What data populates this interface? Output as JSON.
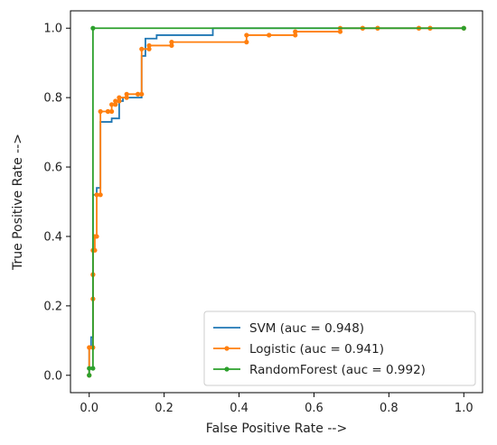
{
  "chart_data": {
    "type": "line",
    "title": "",
    "xlabel": "False Positive Rate -->",
    "ylabel": "True Positive Rate -->",
    "xlim": [
      -0.05,
      1.05
    ],
    "ylim": [
      -0.05,
      1.05
    ],
    "xticks": [
      0.0,
      0.2,
      0.4,
      0.6,
      0.8,
      1.0
    ],
    "yticks": [
      0.0,
      0.2,
      0.4,
      0.6,
      0.8,
      1.0
    ],
    "xtick_labels": [
      "0.0",
      "0.2",
      "0.4",
      "0.6",
      "0.8",
      "1.0"
    ],
    "ytick_labels": [
      "0.0",
      "0.2",
      "0.4",
      "0.6",
      "0.8",
      "1.0"
    ],
    "grid": false,
    "legend_position": "lower-right",
    "series": [
      {
        "name": "SVM (auc = 0.948)",
        "color": "#1f77b4",
        "markers": false,
        "x": [
          0,
          0,
          0.005,
          0.005,
          0.01,
          0.01,
          0.02,
          0.02,
          0.03,
          0.03,
          0.06,
          0.06,
          0.08,
          0.08,
          0.09,
          0.09,
          0.14,
          0.14,
          0.15,
          0.15,
          0.18,
          0.18,
          0.33,
          0.33,
          1.0
        ],
        "y": [
          0,
          0.08,
          0.08,
          0.11,
          0.11,
          0.52,
          0.52,
          0.54,
          0.54,
          0.73,
          0.73,
          0.74,
          0.74,
          0.79,
          0.79,
          0.8,
          0.8,
          0.92,
          0.92,
          0.97,
          0.97,
          0.98,
          0.98,
          1.0,
          1.0
        ]
      },
      {
        "name": "Logistic (auc = 0.941)",
        "color": "#ff7f0e",
        "markers": true,
        "x": [
          0,
          0,
          0.01,
          0.01,
          0.01,
          0.01,
          0.01,
          0.01,
          0.015,
          0.015,
          0.02,
          0.02,
          0.03,
          0.03,
          0.05,
          0.05,
          0.06,
          0.06,
          0.07,
          0.07,
          0.08,
          0.08,
          0.1,
          0.1,
          0.13,
          0.13,
          0.14,
          0.14,
          0.16,
          0.16,
          0.22,
          0.22,
          0.42,
          0.42,
          0.48,
          0.48,
          0.55,
          0.55,
          0.67,
          0.67,
          0.73,
          0.73,
          0.77,
          0.77,
          0.88,
          0.88,
          0.91,
          0.91,
          1.0
        ],
        "y": [
          0,
          0.08,
          0.08,
          0.22,
          0.22,
          0.29,
          0.29,
          0.36,
          0.36,
          0.4,
          0.4,
          0.52,
          0.52,
          0.76,
          0.76,
          0.76,
          0.76,
          0.78,
          0.78,
          0.79,
          0.79,
          0.8,
          0.8,
          0.81,
          0.81,
          0.81,
          0.81,
          0.94,
          0.94,
          0.95,
          0.95,
          0.96,
          0.96,
          0.98,
          0.98,
          0.98,
          0.98,
          0.99,
          0.99,
          1.0,
          1.0,
          1.0,
          1.0,
          1.0,
          1.0,
          1.0,
          1.0,
          1.0,
          1.0
        ]
      },
      {
        "name": "RandomForest (auc = 0.992)",
        "color": "#2ca02c",
        "markers": true,
        "x": [
          0,
          0,
          0.01,
          0.01,
          1.0
        ],
        "y": [
          0,
          0.02,
          0.02,
          1.0,
          1.0
        ]
      }
    ]
  }
}
